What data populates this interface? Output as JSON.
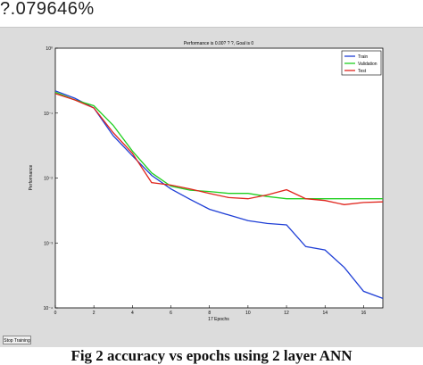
{
  "top_text": "?.079646%",
  "window": {
    "stop_button_label": "Stop Training"
  },
  "caption": "Fig 2 accuracy vs epochs using 2 layer ANN",
  "chart_data": {
    "type": "line",
    "title": "Performance is 0.00? ? ?, Goal is 0",
    "xlabel": "17 Epochs",
    "ylabel": "Performance",
    "x_scale": "linear",
    "y_scale": "log",
    "xlim": [
      0,
      17
    ],
    "ylim": [
      0.0001,
      1
    ],
    "x_ticks": [
      {
        "value": 0,
        "label": "0"
      },
      {
        "value": 2,
        "label": "2"
      },
      {
        "value": 4,
        "label": "4"
      },
      {
        "value": 6,
        "label": "6"
      },
      {
        "value": 8,
        "label": "8"
      },
      {
        "value": 10,
        "label": "10"
      },
      {
        "value": 12,
        "label": "12"
      },
      {
        "value": 14,
        "label": "14"
      },
      {
        "value": 16,
        "label": "16"
      }
    ],
    "y_ticks": [
      {
        "value": 1,
        "label": "10⁰"
      },
      {
        "value": 0.1,
        "label": "10⁻¹"
      },
      {
        "value": 0.01,
        "label": "10⁻²"
      },
      {
        "value": 0.001,
        "label": "10⁻³"
      },
      {
        "value": 0.0001,
        "label": "10⁻⁴"
      }
    ],
    "legend_position": "top-right",
    "series": [
      {
        "name": "Train",
        "color": "#1f3fd6",
        "x": [
          0,
          1,
          2,
          3,
          4,
          5,
          6,
          7,
          8,
          9,
          10,
          11,
          12,
          13,
          14,
          15,
          16,
          17
        ],
        "y": [
          0.22,
          0.17,
          0.12,
          0.045,
          0.022,
          0.011,
          0.0068,
          0.0047,
          0.0033,
          0.0027,
          0.0022,
          0.002,
          0.0019,
          0.00088,
          0.00078,
          0.00042,
          0.00018,
          0.00014
        ]
      },
      {
        "name": "Validation",
        "color": "#20d020",
        "x": [
          0,
          1,
          2,
          3,
          4,
          5,
          6,
          7,
          8,
          9,
          10,
          11,
          12,
          13,
          14,
          15,
          16,
          17
        ],
        "y": [
          0.21,
          0.16,
          0.13,
          0.065,
          0.026,
          0.012,
          0.0075,
          0.0065,
          0.0062,
          0.0058,
          0.0058,
          0.0052,
          0.0048,
          0.0048,
          0.0048,
          0.0048,
          0.0048,
          0.0048
        ]
      },
      {
        "name": "Test",
        "color": "#e0241c",
        "x": [
          0,
          1,
          2,
          3,
          4,
          5,
          6,
          7,
          8,
          9,
          10,
          11,
          12,
          13,
          14,
          15,
          16,
          17
        ],
        "y": [
          0.2,
          0.16,
          0.12,
          0.05,
          0.024,
          0.0085,
          0.0078,
          0.0068,
          0.0058,
          0.005,
          0.0048,
          0.0055,
          0.0066,
          0.0048,
          0.0045,
          0.0039,
          0.0042,
          0.0043
        ]
      }
    ]
  }
}
